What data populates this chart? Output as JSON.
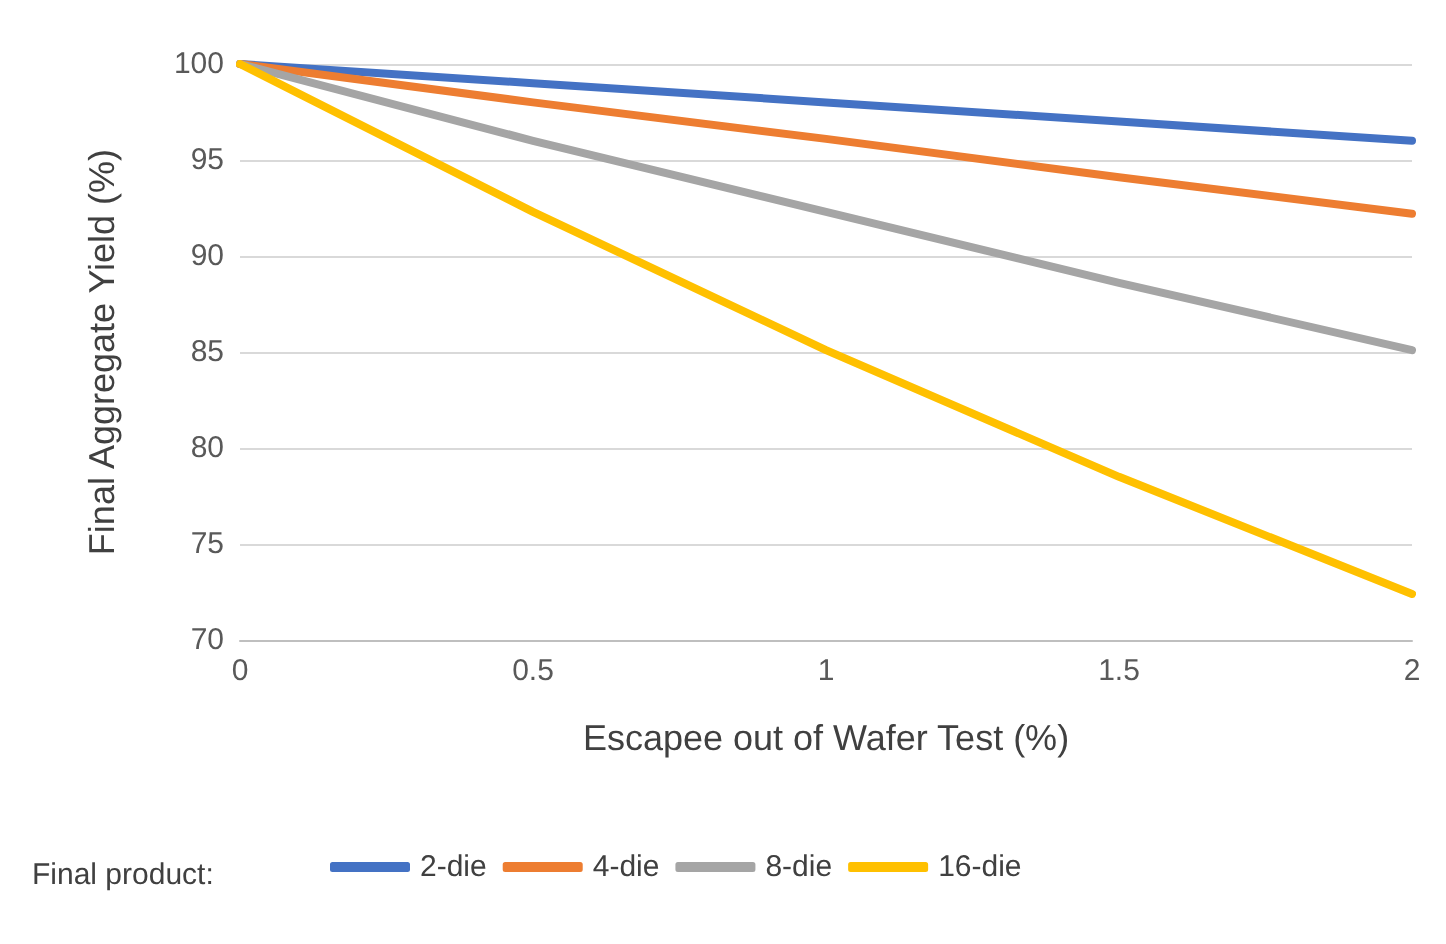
{
  "chart_data": {
    "type": "line",
    "xlabel": "Escapee out of Wafer Test (%)",
    "ylabel": "Final Aggregate Yield (%)",
    "legend_title": "Final product:",
    "x": [
      0,
      0.5,
      1,
      1.5,
      2
    ],
    "xlim": [
      0,
      2
    ],
    "xticks": [
      0,
      0.5,
      1,
      1.5,
      2
    ],
    "ylim": [
      70,
      100
    ],
    "yticks": [
      70,
      75,
      80,
      85,
      90,
      95,
      100
    ],
    "grid": "y",
    "legend": "bottom left",
    "marker": "none",
    "line_style": "solid",
    "series": [
      {
        "name": "2-die",
        "color": "#4472c4",
        "values": [
          100,
          99,
          98,
          97,
          96
        ]
      },
      {
        "name": "4-die",
        "color": "#ed7d31",
        "values": [
          100,
          98,
          96.1,
          94.1,
          92.2
        ]
      },
      {
        "name": "8-die",
        "color": "#a5a5a5",
        "values": [
          100,
          96,
          92.3,
          88.6,
          85.1
        ]
      },
      {
        "name": "16-die",
        "color": "#ffc000",
        "values": [
          100,
          92.3,
          85.1,
          78.5,
          72.4
        ]
      }
    ]
  }
}
